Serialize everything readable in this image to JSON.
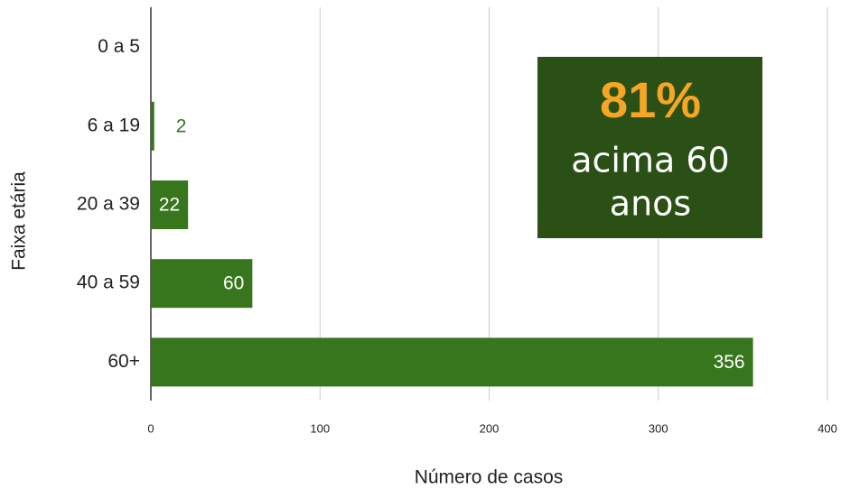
{
  "chart_data": {
    "type": "barh",
    "categories": [
      "0 a 5",
      "6 a 19",
      "20 a 39",
      "40 a 59",
      "60+"
    ],
    "values": [
      0,
      2,
      22,
      60,
      356
    ],
    "color": "#38761d",
    "xlim": [
      0,
      400
    ],
    "xticks": [
      0,
      100,
      200,
      300,
      400
    ],
    "grid": true,
    "x_label": "Número de casos",
    "y_label": "Faixa etária",
    "annotation": {
      "highlight": "81%",
      "lines": [
        "acima 60",
        "anos"
      ]
    }
  }
}
